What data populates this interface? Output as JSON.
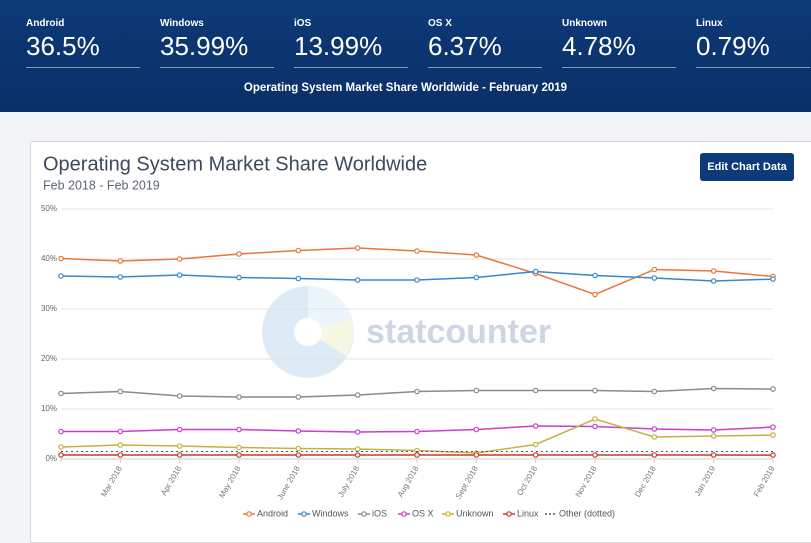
{
  "header": {
    "stats": [
      {
        "label": "Android",
        "value": "36.5%"
      },
      {
        "label": "Windows",
        "value": "35.99%"
      },
      {
        "label": "iOS",
        "value": "13.99%"
      },
      {
        "label": "OS X",
        "value": "6.37%"
      },
      {
        "label": "Unknown",
        "value": "4.78%"
      },
      {
        "label": "Linux",
        "value": "0.79%"
      }
    ],
    "caption": "Operating System Market Share Worldwide - February 2019"
  },
  "button": "Edit Chart Data",
  "chart_data": {
    "type": "line",
    "title": "Operating System Market Share Worldwide",
    "subtitle": "Feb 2018 - Feb 2019",
    "watermark": "statcounter",
    "categories": [
      null,
      "Mar 2018",
      "Apr 2018",
      "May 2018",
      "June 2018",
      "July 2018",
      "Aug 2018",
      "Sept 2018",
      "Oct 2018",
      "Nov 2018",
      "Dec 2018",
      "Jan 2019",
      "Feb 2019"
    ],
    "ylim": [
      0,
      50
    ],
    "yticks": [
      {
        "value": 0,
        "label": "0%"
      },
      {
        "value": 10,
        "label": "10%"
      },
      {
        "value": 20,
        "label": "20%"
      },
      {
        "value": 30,
        "label": "30%"
      },
      {
        "value": 40,
        "label": "40%"
      },
      {
        "value": 50,
        "label": "50%"
      }
    ],
    "grid": true,
    "legend": "bottom",
    "series": [
      {
        "name": "Android",
        "color": "#e8773d",
        "values": [
          40.1,
          39.6,
          40.0,
          41.0,
          41.7,
          42.2,
          41.6,
          40.8,
          37.1,
          32.9,
          37.9,
          37.6,
          36.5
        ]
      },
      {
        "name": "Windows",
        "color": "#3a87c8",
        "values": [
          36.6,
          36.4,
          36.8,
          36.3,
          36.1,
          35.8,
          35.8,
          36.3,
          37.5,
          36.7,
          36.2,
          35.6,
          35.99
        ]
      },
      {
        "name": "iOS",
        "color": "#8a8a8a",
        "values": [
          13.1,
          13.5,
          12.6,
          12.4,
          12.4,
          12.8,
          13.5,
          13.7,
          13.7,
          13.7,
          13.5,
          14.1,
          13.99
        ]
      },
      {
        "name": "OS X",
        "color": "#cc3dcc",
        "values": [
          5.5,
          5.5,
          5.9,
          5.9,
          5.6,
          5.4,
          5.5,
          5.9,
          6.6,
          6.5,
          6.0,
          5.8,
          6.37
        ]
      },
      {
        "name": "Unknown",
        "color": "#c8b040",
        "values": [
          2.4,
          2.8,
          2.6,
          2.3,
          2.1,
          2.0,
          1.7,
          1.2,
          2.9,
          8.0,
          4.4,
          4.6,
          4.78
        ]
      },
      {
        "name": "Linux",
        "color": "#c43a2c",
        "values": [
          0.8,
          0.8,
          0.8,
          0.8,
          0.8,
          0.8,
          0.8,
          0.8,
          0.8,
          0.8,
          0.8,
          0.8,
          0.79
        ]
      },
      {
        "name": "Other (dotted)",
        "color": "#555555",
        "dotted": true,
        "values": [
          1.5,
          1.5,
          1.5,
          1.5,
          1.5,
          1.5,
          1.5,
          1.5,
          1.5,
          1.5,
          1.5,
          1.5,
          1.5
        ]
      }
    ]
  }
}
